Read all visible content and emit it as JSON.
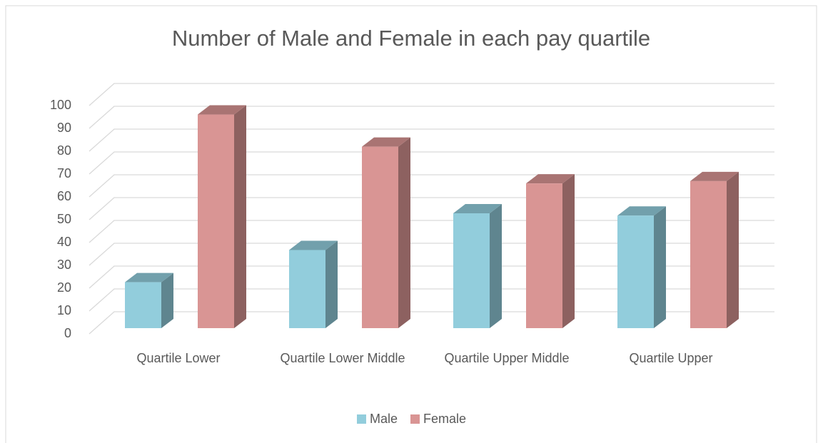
{
  "chart_data": {
    "type": "bar3d",
    "title": "Number of Male and Female in each pay quartile",
    "categories": [
      "Quartile Lower",
      "Quartile Lower Middle",
      "Quartile Upper Middle",
      "Quartile Upper"
    ],
    "series": [
      {
        "name": "Male",
        "color": "#92cddc",
        "values": [
          20,
          34,
          50,
          49
        ]
      },
      {
        "name": "Female",
        "color": "#d99594",
        "values": [
          93,
          79,
          63,
          64
        ]
      }
    ],
    "ylim": [
      0,
      100
    ],
    "yticks": [
      0,
      10,
      20,
      30,
      40,
      50,
      60,
      70,
      80,
      90,
      100
    ],
    "grid": true,
    "legend": "bottom"
  }
}
